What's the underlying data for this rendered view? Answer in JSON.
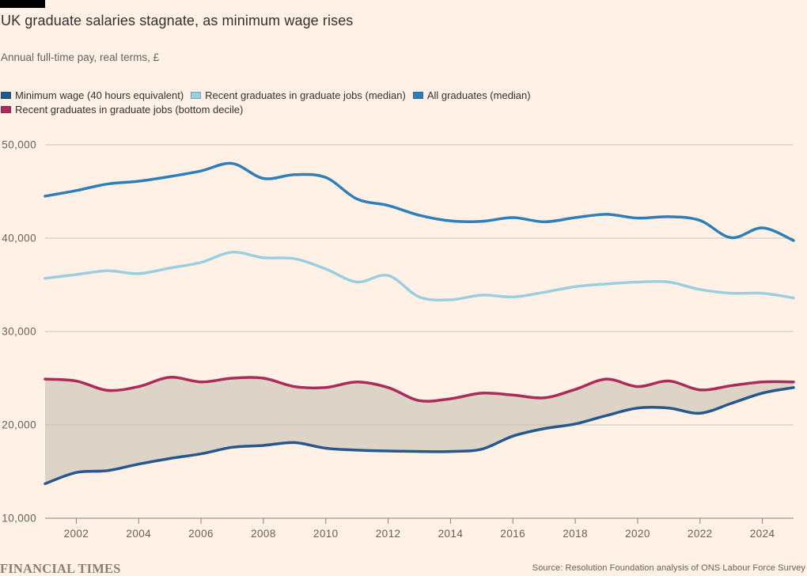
{
  "header": {
    "title": "UK graduate salaries stagnate, as minimum wage rises",
    "subtitle": "Annual full-time pay, real terms, £"
  },
  "legend": {
    "items": [
      {
        "label": "Minimum wage (40 hours equivalent)",
        "color": "#26588c"
      },
      {
        "label": "Recent graduates in graduate jobs (median)",
        "color": "#9bcfe0"
      },
      {
        "label": "All graduates (median)",
        "color": "#2e7eb8"
      },
      {
        "label": "Recent graduates in graduate jobs (bottom decile)",
        "color": "#ab2b5a"
      }
    ]
  },
  "footer": {
    "brand": "FINANCIAL TIMES",
    "source": "Source: Resolution Foundation analysis of ONS Labour Force Survey"
  },
  "colors": {
    "background": "#fff1e5",
    "band_fill": "#ddd3c7",
    "gridline": "#ccc1b7",
    "axis": "#8c8177",
    "text_dark": "#33302e",
    "text_muted": "#66605c"
  },
  "chart_data": {
    "type": "line",
    "title": "UK graduate salaries stagnate, as minimum wage rises",
    "subtitle": "Annual full-time pay, real terms, £",
    "xlabel": "",
    "ylabel": "Annual full-time pay, real terms, £",
    "x": [
      2001,
      2002,
      2003,
      2004,
      2005,
      2006,
      2007,
      2008,
      2009,
      2010,
      2011,
      2012,
      2013,
      2014,
      2015,
      2016,
      2017,
      2018,
      2019,
      2020,
      2021,
      2022,
      2023,
      2024,
      2025
    ],
    "series": [
      {
        "name": "Minimum wage (40 hours equivalent)",
        "color": "#26588c",
        "values": [
          13700,
          14900,
          15100,
          15800,
          16400,
          16900,
          17600,
          17800,
          18100,
          17500,
          17300,
          17200,
          17150,
          17150,
          17400,
          18800,
          19600,
          20100,
          21000,
          21800,
          21800,
          21250,
          22300,
          23400,
          24000
        ]
      },
      {
        "name": "Recent graduates in graduate jobs (median)",
        "color": "#9bcfe0",
        "values": [
          35700,
          36100,
          36500,
          36200,
          36800,
          37400,
          38500,
          37900,
          37800,
          36700,
          35300,
          36000,
          33700,
          33400,
          33900,
          33700,
          34200,
          34800,
          35100,
          35300,
          35300,
          34500,
          34100,
          34100,
          33600
        ]
      },
      {
        "name": "All graduates (median)",
        "color": "#2e7eb8",
        "values": [
          44500,
          45100,
          45800,
          46100,
          46600,
          47200,
          48000,
          46400,
          46800,
          46500,
          44200,
          43500,
          42450,
          41850,
          41800,
          42200,
          41750,
          42200,
          42550,
          42150,
          42300,
          41900,
          40050,
          41100,
          39750
        ]
      },
      {
        "name": "Recent graduates in graduate jobs (bottom decile)",
        "color": "#ab2b5a",
        "values": [
          24900,
          24700,
          23700,
          24100,
          25100,
          24600,
          25000,
          25000,
          24100,
          24000,
          24600,
          24000,
          22600,
          22800,
          23400,
          23200,
          22900,
          23800,
          24900,
          24100,
          24700,
          23750,
          24200,
          24600,
          24600
        ]
      }
    ],
    "band_between_series": [
      0,
      3
    ],
    "band_color": "#ddd3c7",
    "ylim": [
      10000,
      50000
    ],
    "yticks": [
      10000,
      20000,
      30000,
      40000,
      50000
    ],
    "xticks": [
      2002,
      2004,
      2006,
      2008,
      2010,
      2012,
      2014,
      2016,
      2018,
      2020,
      2022,
      2024
    ],
    "grid": "horizontal",
    "legend_position": "top"
  }
}
